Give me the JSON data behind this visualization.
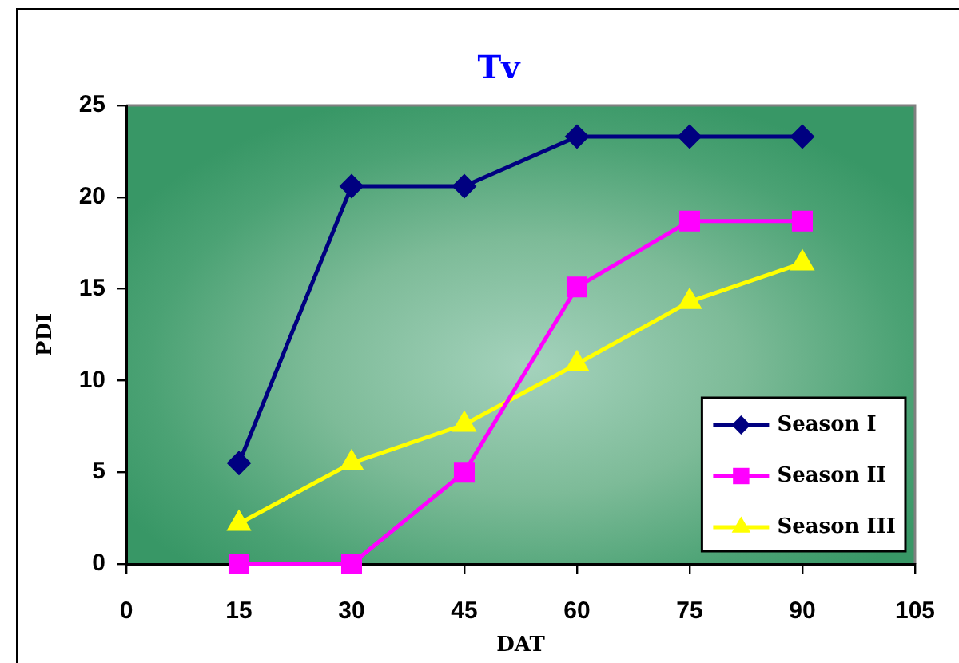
{
  "chart_data": {
    "type": "line",
    "title": "Tv",
    "xlabel": "DAT",
    "ylabel": "PDI",
    "x": [
      15,
      30,
      45,
      60,
      75,
      90
    ],
    "series": [
      {
        "name": "Season I",
        "color": "#000080",
        "marker": "diamond",
        "values": [
          5.5,
          20.6,
          20.6,
          23.3,
          23.3,
          23.3
        ]
      },
      {
        "name": "Season II",
        "color": "#ff00ff",
        "marker": "square",
        "values": [
          0,
          0,
          5.0,
          15.1,
          18.7,
          18.7
        ]
      },
      {
        "name": "Season III",
        "color": "#ffff00",
        "marker": "triangle",
        "values": [
          2.2,
          5.5,
          7.6,
          10.9,
          14.3,
          16.4
        ]
      }
    ],
    "xlim": [
      0,
      105
    ],
    "xticks": [
      0,
      15,
      30,
      45,
      60,
      75,
      90,
      105
    ],
    "ylim": [
      0,
      25
    ],
    "yticks": [
      0,
      5,
      10,
      15,
      20,
      25
    ],
    "legend": "bottom right",
    "line_style": "solid"
  }
}
